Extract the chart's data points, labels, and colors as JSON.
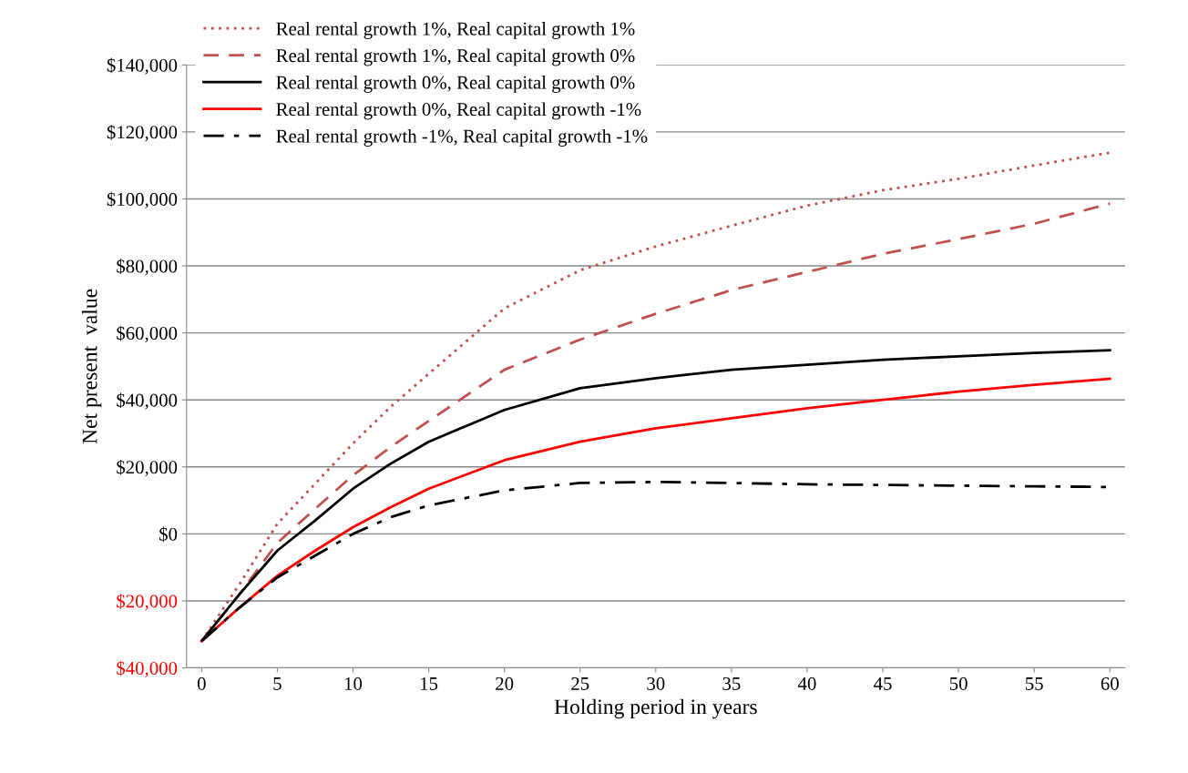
{
  "chart_data": {
    "type": "line",
    "xlabel": "Holding period in years",
    "ylabel": "Net present  value",
    "x": [
      0,
      2.5,
      5,
      7.5,
      10,
      12.5,
      15,
      20,
      25,
      30,
      35,
      40,
      45,
      50,
      55,
      60
    ],
    "series": [
      {
        "name": "Real rental growth 1%, Real capital growth 1%",
        "color": "#c0504d",
        "line_style": "dotted",
        "values": [
          -32000,
          -15000,
          3000,
          15000,
          27000,
          38000,
          47800,
          67300,
          78700,
          85800,
          92000,
          98000,
          102600,
          106000,
          110000,
          113800
        ]
      },
      {
        "name": "Real rental growth 1%, Real capital growth 0%",
        "color": "#c0504d",
        "line_style": "dashed",
        "values": [
          -32000,
          -18000,
          -2700,
          7500,
          17500,
          26000,
          33700,
          49000,
          58000,
          65700,
          72800,
          78200,
          83600,
          88000,
          92600,
          98600
        ]
      },
      {
        "name": "Real rental growth 0%, Real capital growth 0%",
        "color": "#000000",
        "line_style": "solid",
        "values": [
          -32000,
          -18000,
          -5000,
          4000,
          13500,
          21000,
          27500,
          37000,
          43500,
          46500,
          49000,
          50500,
          52000,
          53000,
          54000,
          54800
        ]
      },
      {
        "name": "Real rental growth 0%, Real capital growth -1%",
        "color": "#ff0000",
        "line_style": "solid",
        "values": [
          -32000,
          -22000,
          -12500,
          -5000,
          2000,
          8000,
          13500,
          22000,
          27500,
          31500,
          34500,
          37500,
          40000,
          42500,
          44500,
          46300
        ]
      },
      {
        "name": "Real rental growth -1%, Real capital growth -1%",
        "color": "#000000",
        "line_style": "dashdot",
        "values": [
          -32000,
          -22000,
          -13000,
          -6500,
          0,
          5000,
          8500,
          13000,
          15200,
          15500,
          15200,
          14800,
          14600,
          14400,
          14200,
          14000
        ]
      }
    ],
    "xlim": [
      -1,
      61
    ],
    "xticks": [
      0,
      5,
      10,
      15,
      20,
      25,
      30,
      35,
      40,
      45,
      50,
      55,
      60
    ],
    "ylim": [
      -40000,
      140000
    ],
    "yticks": [
      {
        "value": -40000,
        "label": "$40,000"
      },
      {
        "value": -20000,
        "label": "$20,000"
      },
      {
        "value": 0,
        "label": "$0"
      },
      {
        "value": 20000,
        "label": "$20,000"
      },
      {
        "value": 40000,
        "label": "$40,000"
      },
      {
        "value": 60000,
        "label": "$60,000"
      },
      {
        "value": 80000,
        "label": "$80,000"
      },
      {
        "value": 100000,
        "label": "$100,000"
      },
      {
        "value": 120000,
        "label": "$120,000"
      },
      {
        "value": 140000,
        "label": "$140,000"
      }
    ],
    "grid": "y",
    "legend": "top left"
  }
}
